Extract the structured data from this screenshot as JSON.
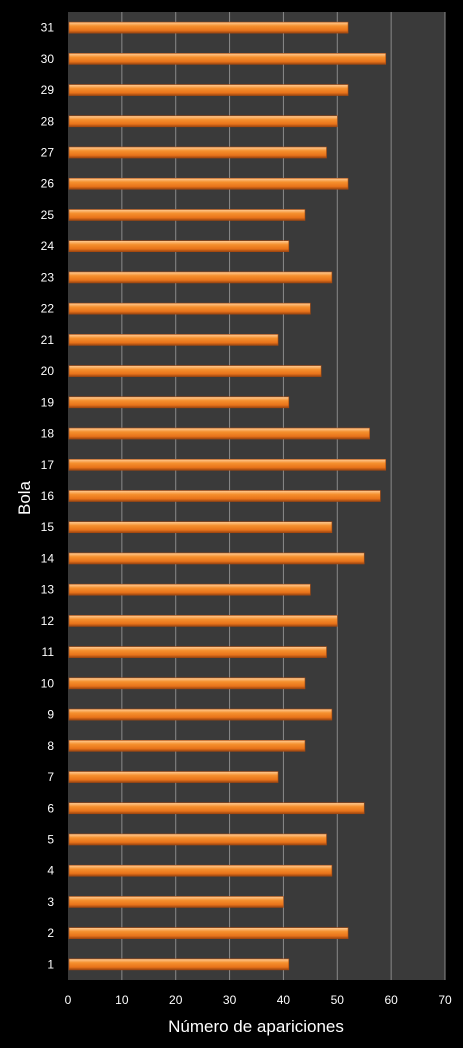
{
  "chart_data": {
    "type": "bar",
    "orientation": "horizontal",
    "categories": [
      "1",
      "2",
      "3",
      "4",
      "5",
      "6",
      "7",
      "8",
      "9",
      "10",
      "11",
      "12",
      "13",
      "14",
      "15",
      "16",
      "17",
      "18",
      "19",
      "20",
      "21",
      "22",
      "23",
      "24",
      "25",
      "26",
      "27",
      "28",
      "29",
      "30",
      "31"
    ],
    "values": [
      41,
      52,
      40,
      49,
      48,
      55,
      39,
      44,
      49,
      44,
      48,
      50,
      45,
      55,
      49,
      58,
      59,
      56,
      41,
      47,
      39,
      45,
      49,
      41,
      44,
      52,
      48,
      50,
      52,
      59,
      52
    ],
    "xlabel": "Número de apariciones",
    "ylabel": "Bola",
    "xlim": [
      0,
      70
    ],
    "xticks": [
      "0",
      "10",
      "20",
      "30",
      "40",
      "50",
      "60",
      "70"
    ],
    "grid": "vertical",
    "legend": "none",
    "colors": {
      "background": "#000000",
      "plot_area": "#3a3a3a",
      "bar": "#f07820",
      "bar_highlight": "#ffb070",
      "bar_shadow": "#a84a10",
      "gridline": "#8a8a8a",
      "text": "#ffffff"
    }
  }
}
